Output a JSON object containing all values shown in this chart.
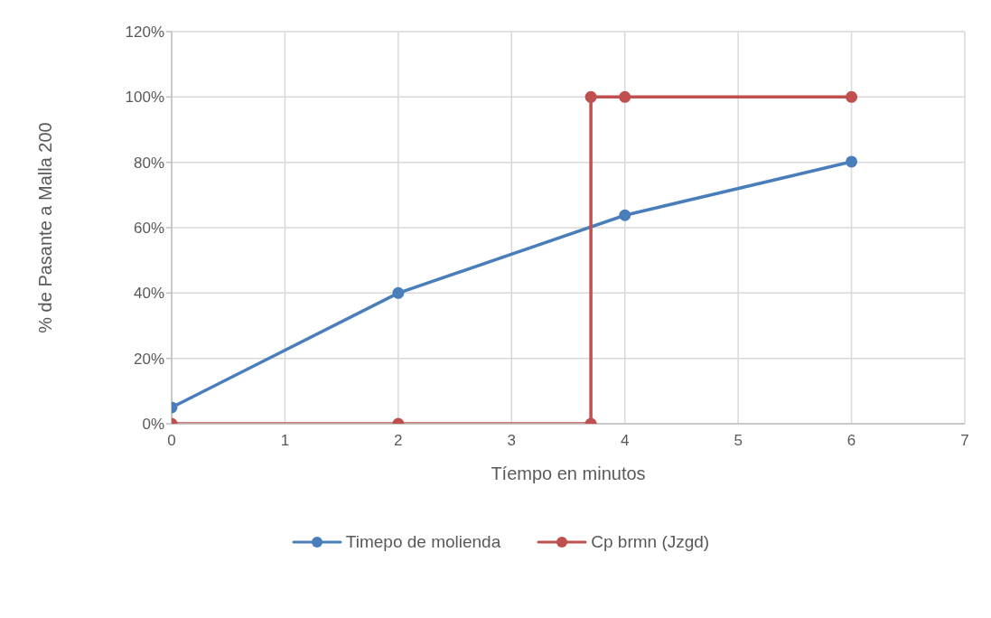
{
  "chart_data": {
    "type": "line",
    "xlabel": "Tíempo en minutos",
    "ylabel": "% de Pasante a Malla 200",
    "xlim": [
      0,
      7
    ],
    "xticks": [
      0,
      1,
      2,
      3,
      4,
      5,
      6,
      7
    ],
    "ylim": [
      0,
      120
    ],
    "yticks": [
      {
        "value": 0,
        "label": "0%"
      },
      {
        "value": 20,
        "label": "20%"
      },
      {
        "value": 40,
        "label": "40%"
      },
      {
        "value": 60,
        "label": "60%"
      },
      {
        "value": 80,
        "label": "80%"
      },
      {
        "value": 100,
        "label": "100%"
      },
      {
        "value": 120,
        "label": "120%"
      }
    ],
    "grid": true,
    "legend": "bottom",
    "marker": "circle",
    "line_style": "solid",
    "series": [
      {
        "name": "Timepo de molienda",
        "color": "#4a7ebb",
        "x": [
          0,
          2,
          4,
          6
        ],
        "values": [
          5,
          40,
          63.8,
          80.2
        ]
      },
      {
        "name": "Cp brmn (Jzgd)",
        "color": "#c0504d",
        "x": [
          0,
          2,
          3.7,
          3.7,
          4,
          6
        ],
        "values": [
          0,
          0,
          0,
          100,
          100,
          100
        ]
      }
    ]
  }
}
